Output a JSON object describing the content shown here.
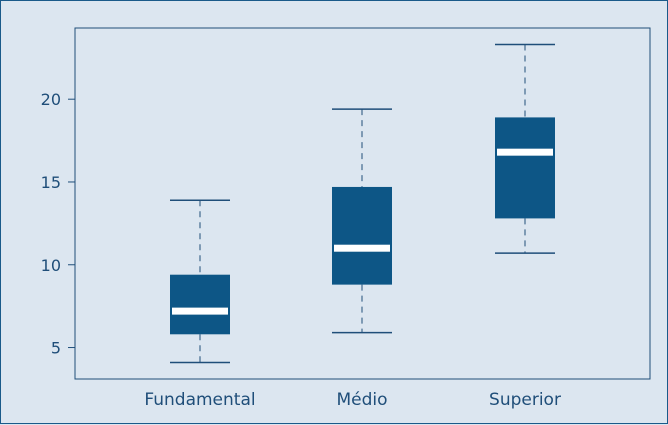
{
  "chart_data": {
    "type": "boxplot",
    "categories": [
      "Fundamental",
      "Médio",
      "Superior"
    ],
    "boxes": [
      {
        "category": "Fundamental",
        "min": 4.1,
        "q1": 5.8,
        "median": 7.2,
        "q3": 9.4,
        "max": 13.9
      },
      {
        "category": "Médio",
        "min": 5.9,
        "q1": 8.8,
        "median": 11.0,
        "q3": 14.7,
        "max": 19.4
      },
      {
        "category": "Superior",
        "min": 10.7,
        "q1": 12.8,
        "median": 16.8,
        "q3": 18.9,
        "max": 23.3
      }
    ],
    "yticks": [
      5,
      10,
      15,
      20
    ],
    "ylim": [
      3.1,
      24.3
    ],
    "grid": false,
    "colors": {
      "box_fill": "#0d5686",
      "median": "#ffffff",
      "whisker": "#1f4e79",
      "axis": "#1f4e79",
      "background": "#dce6f0"
    }
  }
}
